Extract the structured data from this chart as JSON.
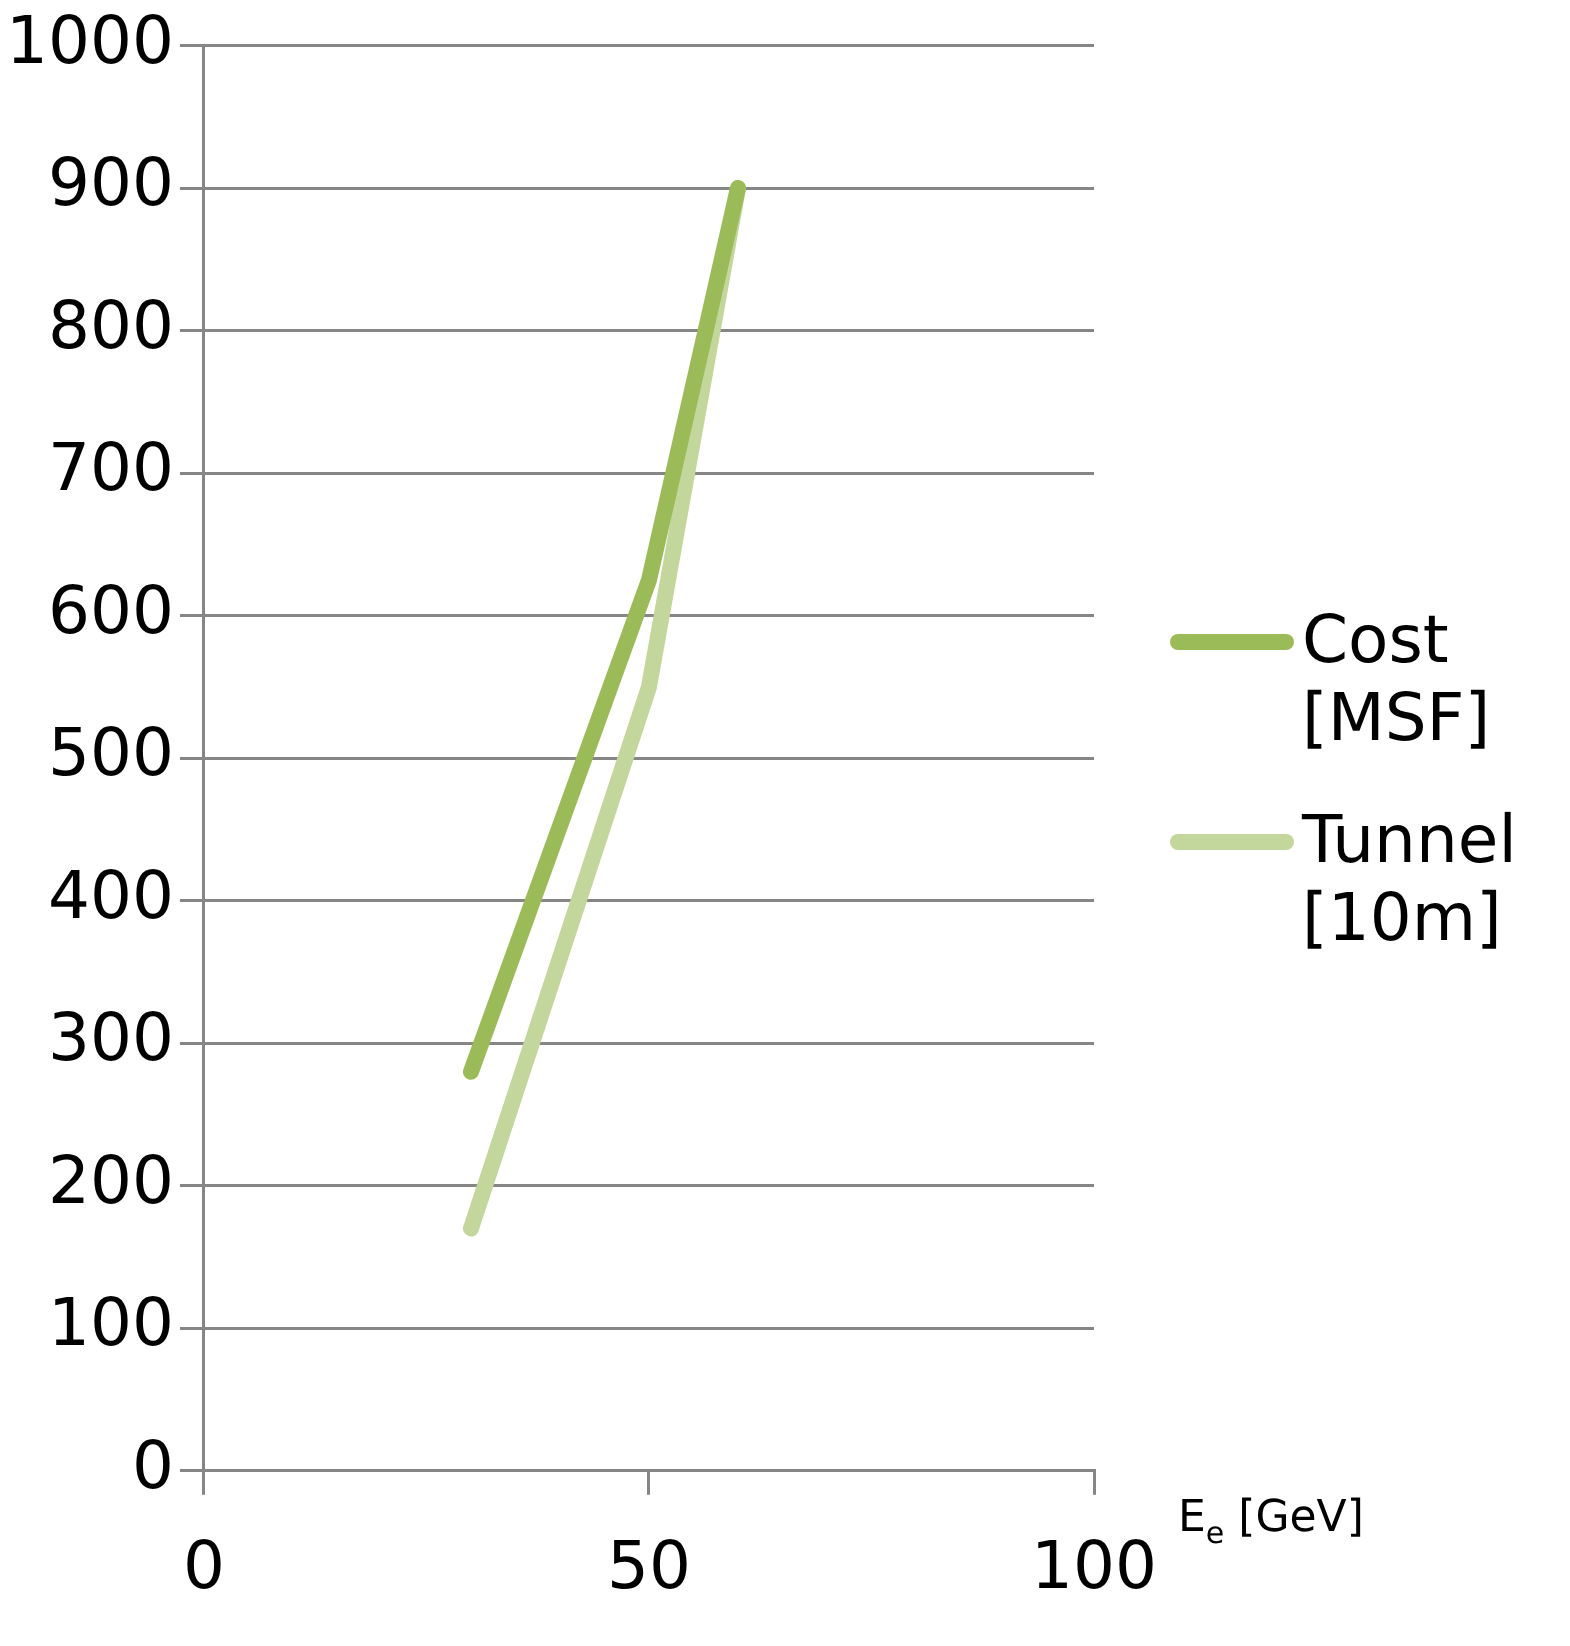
{
  "chart_data": {
    "type": "line",
    "xlabel": "E$_{e}$ [GeV]",
    "xlim": [
      0,
      100
    ],
    "xticks": [
      0,
      50,
      100
    ],
    "ylim": [
      0,
      1000
    ],
    "yticks": [
      0,
      100,
      200,
      300,
      400,
      500,
      600,
      700,
      800,
      900,
      1000
    ],
    "grid": "y",
    "legend": "right",
    "marker": "none",
    "line_style": "solid",
    "series": [
      {
        "name": "Cost [MSF]",
        "color": "#9bbb59",
        "x": [
          30,
          50,
          60
        ],
        "values": [
          280,
          625,
          900
        ]
      },
      {
        "name": "Tunnel [10m]",
        "color": "#c3d69b",
        "x": [
          30,
          50,
          60
        ],
        "values": [
          170,
          550,
          900
        ]
      }
    ]
  }
}
